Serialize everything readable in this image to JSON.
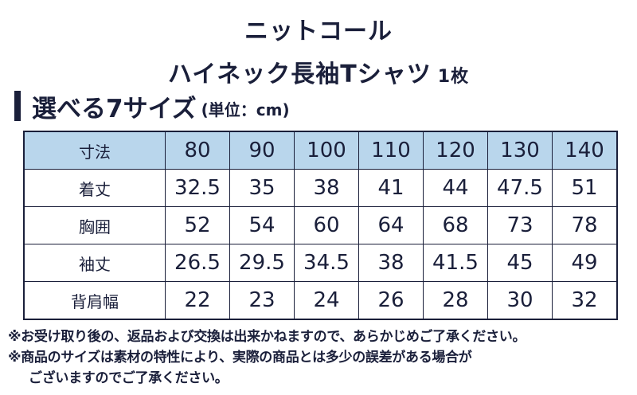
{
  "title": {
    "line1": "ニットコール",
    "line2": "ハイネック長袖Tシャツ",
    "count": "1枚"
  },
  "heading": {
    "main": "選べる7サイズ",
    "unit": "(単位：cm)"
  },
  "table": {
    "corner": "寸法",
    "sizes": [
      "80",
      "90",
      "100",
      "110",
      "120",
      "130",
      "140"
    ],
    "rows": [
      {
        "label": "着丈",
        "values": [
          "32.5",
          "35",
          "38",
          "41",
          "44",
          "47.5",
          "51"
        ]
      },
      {
        "label": "胸囲",
        "values": [
          "52",
          "54",
          "60",
          "64",
          "68",
          "73",
          "78"
        ]
      },
      {
        "label": "袖丈",
        "values": [
          "26.5",
          "29.5",
          "34.5",
          "38",
          "41.5",
          "45",
          "49"
        ]
      },
      {
        "label": "背肩幅",
        "values": [
          "22",
          "23",
          "24",
          "26",
          "28",
          "30",
          "32"
        ]
      }
    ]
  },
  "notes": {
    "line1": "※お受け取り後の、返品および交換は出来かねますので、あらかじめご了承ください。",
    "line2": "※商品のサイズは素材の特性により、実際の商品とは多少の誤差がある場合が",
    "line3": "ございますのでご了承ください。"
  },
  "colors": {
    "text": "#1a1f3a",
    "header_bg": "#b9d6ec"
  }
}
